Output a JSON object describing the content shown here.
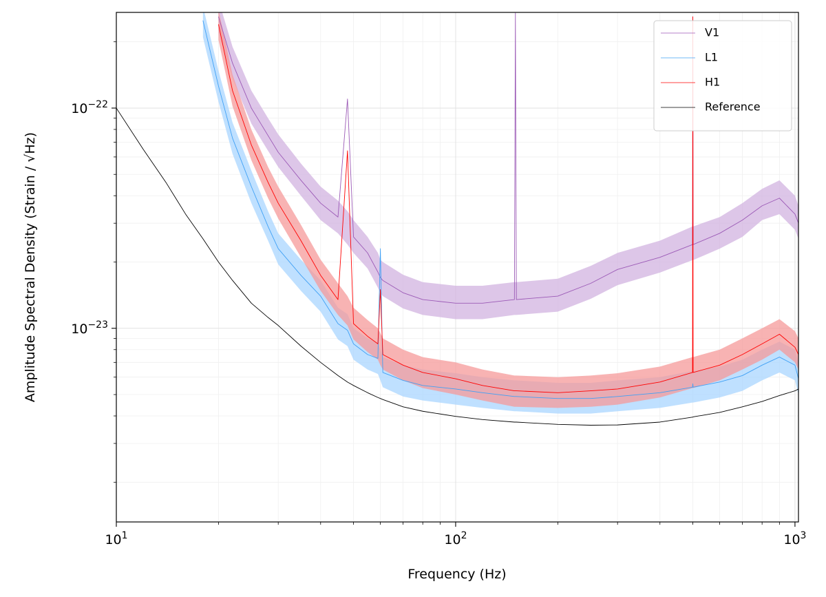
{
  "chart_data": {
    "type": "line",
    "xlabel": "Frequency (Hz)",
    "ylabel": "Amplitude Spectral Density (Strain / √Hz)",
    "xscale": "log",
    "yscale": "log",
    "xlim": [
      10,
      1024
    ],
    "ylim": [
      1.32e-24,
      2.72e-22
    ],
    "xticks": [
      {
        "value": 10,
        "label": "101"
      },
      {
        "value": 100,
        "label": "102"
      },
      {
        "value": 1000,
        "label": "103"
      }
    ],
    "yticks": [
      {
        "value": 1e-23,
        "label": "10−23"
      },
      {
        "value": 1e-22,
        "label": "10−22"
      }
    ],
    "xminorticks": [
      20,
      30,
      40,
      50,
      60,
      70,
      80,
      90,
      200,
      300,
      400,
      500,
      600,
      700,
      800,
      900
    ],
    "yminorticks": [
      2e-24,
      3e-24,
      4e-24,
      5e-24,
      6e-24,
      7e-24,
      8e-24,
      9e-24,
      2e-23,
      3e-23,
      4e-23,
      5e-23,
      6e-23,
      7e-23,
      8e-23,
      9e-23,
      2e-22
    ],
    "grid": true,
    "legend": "upper right",
    "x": [
      10,
      12,
      14,
      16,
      18,
      20,
      22,
      25,
      28,
      30,
      35,
      40,
      45,
      48,
      50,
      55,
      59,
      60,
      61,
      70,
      80,
      100,
      120,
      149,
      150,
      151,
      200,
      250,
      300,
      400,
      499,
      500,
      501,
      600,
      700,
      800,
      900,
      1000,
      1024
    ],
    "series": [
      {
        "name": "V1",
        "color": "#9b59b6",
        "band_color": "#d2b3e0",
        "values": [
          null,
          null,
          null,
          null,
          null,
          2.6e-22,
          1.6e-22,
          1e-22,
          7.5e-23,
          6.3e-23,
          4.7e-23,
          3.7e-23,
          3.2e-23,
          1.1e-22,
          2.6e-23,
          2.2e-23,
          1.8e-23,
          1.7e-23,
          1.65e-23,
          1.45e-23,
          1.35e-23,
          1.3e-23,
          1.3e-23,
          1.35e-23,
          2.7e-22,
          1.35e-23,
          1.4e-23,
          1.6e-23,
          1.85e-23,
          2.1e-23,
          2.4e-23,
          2.6e-22,
          2.4e-23,
          2.7e-23,
          3.1e-23,
          3.6e-23,
          3.9e-23,
          3.3e-23,
          3e-23
        ],
        "lower": [
          null,
          null,
          null,
          null,
          null,
          2.2e-22,
          1.36e-22,
          8.5e-23,
          6.4e-23,
          5.4e-23,
          4e-23,
          3.1e-23,
          2.7e-23,
          2.4e-23,
          2.2e-23,
          1.87e-23,
          1.53e-23,
          1.45e-23,
          1.4e-23,
          1.23e-23,
          1.15e-23,
          1.1e-23,
          1.1e-23,
          1.15e-23,
          1.15e-23,
          1.15e-23,
          1.19e-23,
          1.36e-23,
          1.57e-23,
          1.79e-23,
          2.04e-23,
          2.04e-23,
          2.04e-23,
          2.3e-23,
          2.6e-23,
          3.1e-23,
          3.3e-23,
          2.8e-23,
          2.55e-23
        ],
        "upper": [
          null,
          null,
          null,
          null,
          null,
          3.1e-22,
          1.9e-22,
          1.2e-22,
          9e-23,
          7.6e-23,
          5.6e-23,
          4.4e-23,
          3.8e-23,
          3.4e-23,
          3.1e-23,
          2.6e-23,
          2.2e-23,
          2.05e-23,
          2e-23,
          1.75e-23,
          1.62e-23,
          1.56e-23,
          1.56e-23,
          1.62e-23,
          1.62e-23,
          1.62e-23,
          1.68e-23,
          1.92e-23,
          2.2e-23,
          2.5e-23,
          2.9e-23,
          2.9e-23,
          2.9e-23,
          3.2e-23,
          3.7e-23,
          4.3e-23,
          4.7e-23,
          4e-23,
          3.6e-23
        ]
      },
      {
        "name": "L1",
        "color": "#3fa0f5",
        "band_color": "#aad6ff",
        "values": [
          null,
          null,
          null,
          null,
          2.5e-22,
          1.26e-22,
          7.3e-23,
          4.4e-23,
          2.9e-23,
          2.3e-23,
          1.74e-23,
          1.4e-23,
          1.05e-23,
          9.8e-24,
          8.5e-24,
          7.6e-24,
          7.3e-24,
          2.3e-23,
          6.3e-24,
          5.8e-24,
          5.5e-24,
          5.3e-24,
          5.1e-24,
          4.9e-24,
          4.9e-24,
          4.9e-24,
          4.8e-24,
          4.8e-24,
          4.9e-24,
          5.1e-24,
          5.4e-24,
          5.6e-24,
          5.4e-24,
          5.7e-24,
          6.1e-24,
          6.8e-24,
          7.4e-24,
          6.8e-24,
          5.9e-24
        ],
        "lower": [
          null,
          null,
          null,
          null,
          2.1e-22,
          1.07e-22,
          6.2e-23,
          3.7e-23,
          2.5e-23,
          1.95e-23,
          1.48e-23,
          1.19e-23,
          8.9e-24,
          8.3e-24,
          7.2e-24,
          6.5e-24,
          6.2e-24,
          5.8e-24,
          5.4e-24,
          4.9e-24,
          4.7e-24,
          4.5e-24,
          4.35e-24,
          4.2e-24,
          4.2e-24,
          4.2e-24,
          4.1e-24,
          4.1e-24,
          4.2e-24,
          4.35e-24,
          4.6e-24,
          4.6e-24,
          4.6e-24,
          4.85e-24,
          5.2e-24,
          5.8e-24,
          6.3e-24,
          5.8e-24,
          5e-24
        ],
        "upper": [
          null,
          null,
          null,
          null,
          2.9e-22,
          1.48e-22,
          8.6e-23,
          5.2e-23,
          3.4e-23,
          2.7e-23,
          2.05e-23,
          1.65e-23,
          1.24e-23,
          1.16e-23,
          1e-23,
          9e-24,
          8.6e-24,
          8e-24,
          7.4e-24,
          6.8e-24,
          6.5e-24,
          6.25e-24,
          6e-24,
          5.8e-24,
          5.8e-24,
          5.8e-24,
          5.65e-24,
          5.65e-24,
          5.8e-24,
          6e-24,
          6.4e-24,
          6.4e-24,
          6.4e-24,
          6.7e-24,
          7.2e-24,
          8e-24,
          8.7e-24,
          8e-24,
          7e-24
        ]
      },
      {
        "name": "H1",
        "color": "#ff0000",
        "band_color": "#f59a9a",
        "values": [
          null,
          null,
          null,
          null,
          null,
          2.4e-22,
          1.2e-22,
          6.8e-23,
          4.6e-23,
          3.7e-23,
          2.5e-23,
          1.74e-23,
          1.35e-23,
          6.4e-23,
          1.05e-23,
          9.2e-24,
          8.5e-24,
          1.5e-23,
          7.6e-24,
          6.8e-24,
          6.3e-24,
          5.9e-24,
          5.5e-24,
          5.2e-24,
          5.2e-24,
          5.2e-24,
          5.1e-24,
          5.2e-24,
          5.3e-24,
          5.7e-24,
          6.3e-24,
          2.6e-22,
          6.3e-24,
          6.8e-24,
          7.6e-24,
          8.5e-24,
          9.4e-24,
          8.2e-24,
          7.6e-24
        ],
        "lower": [
          null,
          null,
          null,
          null,
          null,
          2.04e-22,
          1.02e-22,
          5.8e-23,
          3.9e-23,
          3.15e-23,
          2.1e-23,
          1.48e-23,
          1.15e-23,
          1.03e-23,
          8.9e-24,
          7.8e-24,
          7.2e-24,
          6.8e-24,
          6.5e-24,
          5.8e-24,
          5.35e-24,
          5e-24,
          4.7e-24,
          4.4e-24,
          4.4e-24,
          4.4e-24,
          4.35e-24,
          4.4e-24,
          4.5e-24,
          4.85e-24,
          5.35e-24,
          5.35e-24,
          5.35e-24,
          5.8e-24,
          6.5e-24,
          7.2e-24,
          8e-24,
          7e-24,
          6.5e-24
        ],
        "upper": [
          null,
          null,
          null,
          null,
          null,
          2.8e-22,
          1.42e-22,
          8e-23,
          5.4e-23,
          4.4e-23,
          2.95e-23,
          2.05e-23,
          1.6e-23,
          1.4e-23,
          1.24e-23,
          1.09e-23,
          1e-23,
          9.5e-24,
          9e-24,
          8e-24,
          7.4e-24,
          7e-24,
          6.5e-24,
          6.1e-24,
          6.1e-24,
          6.1e-24,
          6e-24,
          6.1e-24,
          6.25e-24,
          6.7e-24,
          7.4e-24,
          7.4e-24,
          7.4e-24,
          8e-24,
          9e-24,
          1e-23,
          1.1e-23,
          9.7e-24,
          9e-24
        ]
      },
      {
        "name": "Reference",
        "color": "#000000",
        "values": [
          1e-22,
          6.5e-23,
          4.6e-23,
          3.3e-23,
          2.55e-23,
          2e-23,
          1.65e-23,
          1.3e-23,
          1.12e-23,
          1.03e-23,
          8.3e-24,
          7e-24,
          6.1e-24,
          5.7e-24,
          5.5e-24,
          5.1e-24,
          4.85e-24,
          4.8e-24,
          4.75e-24,
          4.4e-24,
          4.2e-24,
          3.98e-24,
          3.85e-24,
          3.75e-24,
          3.75e-24,
          3.75e-24,
          3.66e-24,
          3.63e-24,
          3.64e-24,
          3.75e-24,
          3.95e-24,
          3.95e-24,
          3.96e-24,
          4.15e-24,
          4.4e-24,
          4.65e-24,
          4.95e-24,
          5.2e-24,
          5.3e-24
        ]
      }
    ]
  }
}
